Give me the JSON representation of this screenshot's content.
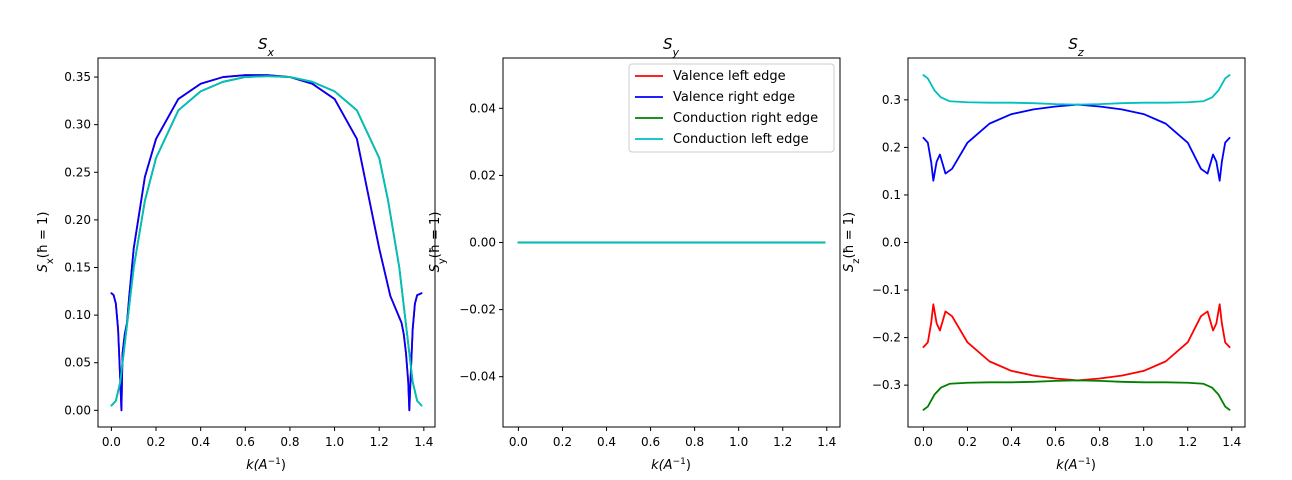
{
  "colors": {
    "valence_left": "#ff0000",
    "valence_right": "#0000ff",
    "conduction_right": "#008000",
    "conduction_left": "#00bfbf",
    "axes": "#000000",
    "background": "#ffffff"
  },
  "chart_data": [
    {
      "type": "line",
      "title": "S",
      "title_sub": "x",
      "xlabel": "k(A",
      "xlabel_sup": "−1",
      "xlabel_close": ")",
      "ylabel": "S",
      "ylabel_sub": "x",
      "ylabel_rest": "(ħ = 1)",
      "xlim": [
        -0.06,
        1.45
      ],
      "ylim": [
        -0.0175,
        0.37
      ],
      "xticks": [
        0.0,
        0.2,
        0.4,
        0.6,
        0.8,
        1.0,
        1.2,
        1.4
      ],
      "xtick_labels": [
        "0.0",
        "0.2",
        "0.4",
        "0.6",
        "0.8",
        "1.0",
        "1.2",
        "1.4"
      ],
      "yticks": [
        0.0,
        0.05,
        0.1,
        0.15,
        0.2,
        0.25,
        0.3,
        0.35
      ],
      "ytick_labels": [
        "0.00",
        "0.05",
        "0.10",
        "0.15",
        "0.20",
        "0.25",
        "0.30",
        "0.35"
      ],
      "grid": false,
      "series": [
        {
          "key": "valence_left",
          "color": "#ff0000",
          "x": [
            0.0,
            0.01,
            0.02,
            0.03,
            0.04,
            0.045,
            0.05,
            0.06,
            0.07,
            0.08,
            0.1,
            0.15,
            0.2,
            0.3,
            0.4,
            0.5,
            0.6,
            0.7,
            0.8,
            0.9,
            1.0,
            1.1,
            1.2,
            1.25,
            1.3,
            1.31,
            1.32,
            1.33,
            1.335,
            1.34,
            1.35,
            1.36,
            1.37,
            1.38,
            1.39
          ],
          "y": [
            0.123,
            0.121,
            0.112,
            0.085,
            0.03,
            0.0,
            0.06,
            0.08,
            0.092,
            0.12,
            0.17,
            0.245,
            0.285,
            0.327,
            0.343,
            0.35,
            0.352,
            0.352,
            0.35,
            0.343,
            0.327,
            0.285,
            0.17,
            0.12,
            0.092,
            0.08,
            0.06,
            0.03,
            0.0,
            0.03,
            0.085,
            0.112,
            0.121,
            0.122,
            0.123
          ]
        },
        {
          "key": "valence_right",
          "color": "#0000ff",
          "x": [
            0.0,
            0.01,
            0.02,
            0.03,
            0.04,
            0.045,
            0.05,
            0.06,
            0.07,
            0.08,
            0.1,
            0.15,
            0.2,
            0.3,
            0.4,
            0.5,
            0.6,
            0.7,
            0.8,
            0.9,
            1.0,
            1.1,
            1.2,
            1.25,
            1.3,
            1.31,
            1.32,
            1.33,
            1.335,
            1.34,
            1.35,
            1.36,
            1.37,
            1.38,
            1.39
          ],
          "y": [
            0.123,
            0.121,
            0.112,
            0.085,
            0.03,
            0.0,
            0.06,
            0.08,
            0.092,
            0.12,
            0.17,
            0.245,
            0.285,
            0.327,
            0.343,
            0.35,
            0.352,
            0.352,
            0.35,
            0.343,
            0.327,
            0.285,
            0.17,
            0.12,
            0.092,
            0.08,
            0.06,
            0.03,
            0.0,
            0.03,
            0.085,
            0.112,
            0.121,
            0.122,
            0.123
          ]
        },
        {
          "key": "conduction_right",
          "color": "#008000",
          "x": [
            0.0,
            0.02,
            0.04,
            0.06,
            0.08,
            0.1,
            0.15,
            0.2,
            0.3,
            0.4,
            0.5,
            0.6,
            0.7,
            0.8,
            0.9,
            1.0,
            1.1,
            1.2,
            1.24,
            1.29,
            1.31,
            1.33,
            1.35,
            1.37,
            1.39
          ],
          "y": [
            0.005,
            0.01,
            0.03,
            0.07,
            0.11,
            0.15,
            0.22,
            0.265,
            0.315,
            0.335,
            0.345,
            0.35,
            0.351,
            0.35,
            0.345,
            0.335,
            0.315,
            0.265,
            0.22,
            0.15,
            0.11,
            0.07,
            0.03,
            0.01,
            0.005
          ]
        },
        {
          "key": "conduction_left",
          "color": "#00bfbf",
          "x": [
            0.0,
            0.02,
            0.04,
            0.06,
            0.08,
            0.1,
            0.15,
            0.2,
            0.3,
            0.4,
            0.5,
            0.6,
            0.7,
            0.8,
            0.9,
            1.0,
            1.1,
            1.2,
            1.24,
            1.29,
            1.31,
            1.33,
            1.35,
            1.37,
            1.39
          ],
          "y": [
            0.005,
            0.01,
            0.03,
            0.07,
            0.11,
            0.15,
            0.22,
            0.265,
            0.315,
            0.335,
            0.345,
            0.35,
            0.351,
            0.35,
            0.345,
            0.335,
            0.315,
            0.265,
            0.22,
            0.15,
            0.11,
            0.07,
            0.03,
            0.01,
            0.005
          ]
        }
      ]
    },
    {
      "type": "line",
      "title": "S",
      "title_sub": "y",
      "xlabel": "k(A",
      "xlabel_sup": "−1",
      "xlabel_close": ")",
      "ylabel": "S",
      "ylabel_sub": "y",
      "ylabel_rest": "(ħ = 1)",
      "xlim": [
        -0.07,
        1.46
      ],
      "ylim": [
        -0.055,
        0.055
      ],
      "xticks": [
        0.0,
        0.2,
        0.4,
        0.6,
        0.8,
        1.0,
        1.2,
        1.4
      ],
      "xtick_labels": [
        "0.0",
        "0.2",
        "0.4",
        "0.6",
        "0.8",
        "1.0",
        "1.2",
        "1.4"
      ],
      "yticks": [
        -0.04,
        -0.02,
        0.0,
        0.02,
        0.04
      ],
      "ytick_labels": [
        "−0.04",
        "−0.02",
        "0.00",
        "0.02",
        "0.04"
      ],
      "grid": false,
      "legend_placement": "top-right",
      "legend": [
        "Valence left edge",
        "Valence right edge",
        "Conduction right edge",
        "Conduction left edge"
      ],
      "series": [
        {
          "key": "valence_left",
          "color": "#ff0000",
          "x": [
            0.0,
            1.39
          ],
          "y": [
            0.0,
            0.0
          ]
        },
        {
          "key": "valence_right",
          "color": "#0000ff",
          "x": [
            0.0,
            1.39
          ],
          "y": [
            0.0,
            0.0
          ]
        },
        {
          "key": "conduction_right",
          "color": "#008000",
          "x": [
            0.0,
            1.39
          ],
          "y": [
            0.0,
            0.0
          ]
        },
        {
          "key": "conduction_left",
          "color": "#00bfbf",
          "x": [
            0.0,
            1.39
          ],
          "y": [
            0.0,
            0.0
          ]
        }
      ]
    },
    {
      "type": "line",
      "title": "S",
      "title_sub": "z",
      "xlabel": "k(A",
      "xlabel_sup": "−1",
      "xlabel_close": ")",
      "ylabel": "S",
      "ylabel_sub": "z",
      "ylabel_rest": "(ħ = 1)",
      "xlim": [
        -0.07,
        1.46
      ],
      "ylim": [
        -0.388,
        0.388
      ],
      "xticks": [
        0.0,
        0.2,
        0.4,
        0.6,
        0.8,
        1.0,
        1.2,
        1.4
      ],
      "xtick_labels": [
        "0.0",
        "0.2",
        "0.4",
        "0.6",
        "0.8",
        "1.0",
        "1.2",
        "1.4"
      ],
      "yticks": [
        -0.3,
        -0.2,
        -0.1,
        0.0,
        0.1,
        0.2,
        0.3
      ],
      "ytick_labels": [
        "−0.3",
        "−0.2",
        "−0.1",
        "0.0",
        "0.1",
        "0.2",
        "0.3"
      ],
      "grid": false,
      "series": [
        {
          "key": "valence_left",
          "color": "#ff0000",
          "x": [
            0.0,
            0.02,
            0.035,
            0.045,
            0.06,
            0.075,
            0.1,
            0.13,
            0.2,
            0.3,
            0.4,
            0.5,
            0.6,
            0.7,
            0.8,
            0.9,
            1.0,
            1.1,
            1.2,
            1.26,
            1.29,
            1.315,
            1.33,
            1.345,
            1.355,
            1.37,
            1.39
          ],
          "y": [
            -0.22,
            -0.21,
            -0.17,
            -0.13,
            -0.17,
            -0.185,
            -0.145,
            -0.155,
            -0.21,
            -0.25,
            -0.27,
            -0.28,
            -0.286,
            -0.29,
            -0.286,
            -0.28,
            -0.27,
            -0.25,
            -0.21,
            -0.155,
            -0.145,
            -0.185,
            -0.17,
            -0.13,
            -0.17,
            -0.21,
            -0.22
          ]
        },
        {
          "key": "valence_right",
          "color": "#0000ff",
          "x": [
            0.0,
            0.02,
            0.035,
            0.045,
            0.06,
            0.075,
            0.1,
            0.13,
            0.2,
            0.3,
            0.4,
            0.5,
            0.6,
            0.7,
            0.8,
            0.9,
            1.0,
            1.1,
            1.2,
            1.26,
            1.29,
            1.315,
            1.33,
            1.345,
            1.355,
            1.37,
            1.39
          ],
          "y": [
            0.22,
            0.21,
            0.17,
            0.13,
            0.17,
            0.185,
            0.145,
            0.155,
            0.21,
            0.25,
            0.27,
            0.28,
            0.286,
            0.29,
            0.286,
            0.28,
            0.27,
            0.25,
            0.21,
            0.155,
            0.145,
            0.185,
            0.17,
            0.13,
            0.17,
            0.21,
            0.22
          ]
        },
        {
          "key": "conduction_right",
          "color": "#008000",
          "x": [
            0.0,
            0.02,
            0.05,
            0.08,
            0.12,
            0.2,
            0.3,
            0.4,
            0.5,
            0.6,
            0.7,
            0.8,
            0.9,
            1.0,
            1.1,
            1.2,
            1.27,
            1.31,
            1.34,
            1.37,
            1.39
          ],
          "y": [
            -0.352,
            -0.345,
            -0.32,
            -0.305,
            -0.297,
            -0.295,
            -0.294,
            -0.294,
            -0.293,
            -0.291,
            -0.29,
            -0.291,
            -0.293,
            -0.294,
            -0.294,
            -0.295,
            -0.297,
            -0.305,
            -0.32,
            -0.345,
            -0.352
          ]
        },
        {
          "key": "conduction_left",
          "color": "#00bfbf",
          "x": [
            0.0,
            0.02,
            0.05,
            0.08,
            0.12,
            0.2,
            0.3,
            0.4,
            0.5,
            0.6,
            0.7,
            0.8,
            0.9,
            1.0,
            1.1,
            1.2,
            1.27,
            1.31,
            1.34,
            1.37,
            1.39
          ],
          "y": [
            0.352,
            0.345,
            0.32,
            0.305,
            0.297,
            0.295,
            0.294,
            0.294,
            0.293,
            0.291,
            0.29,
            0.291,
            0.293,
            0.294,
            0.294,
            0.295,
            0.297,
            0.305,
            0.32,
            0.345,
            0.352
          ]
        }
      ]
    }
  ]
}
